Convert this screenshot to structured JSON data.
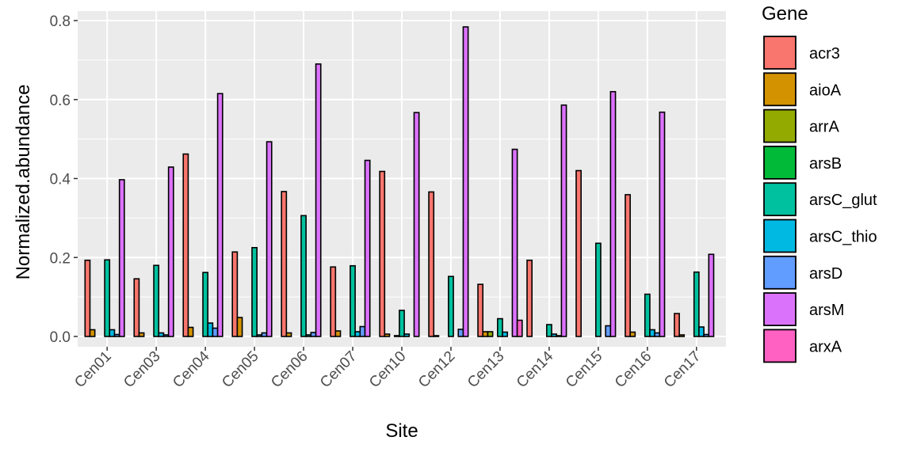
{
  "chart_data": {
    "type": "bar",
    "title": "",
    "xlabel": "Site",
    "ylabel": "Normalized.abundance",
    "ylim": [
      0,
      0.8
    ],
    "yticks": [
      "0.0",
      "0.2",
      "0.4",
      "0.6",
      "0.8"
    ],
    "grid": true,
    "legend": {
      "title": "Gene",
      "placement": "right"
    },
    "categories": [
      "Cen01",
      "Cen03",
      "Cen04",
      "Cen05",
      "Cen06",
      "Cen07",
      "Cen10",
      "Cen12",
      "Cen13",
      "Cen14",
      "Cen15",
      "Cen16",
      "Cen17"
    ],
    "series": [
      {
        "name": "acr3",
        "color": "#F8766D",
        "values": [
          0.193,
          0.146,
          0.462,
          0.214,
          0.367,
          0.176,
          0.418,
          0.366,
          0.132,
          0.193,
          0.42,
          0.359,
          0.058
        ]
      },
      {
        "name": "aioA",
        "color": "#D39200",
        "values": [
          0.017,
          0.009,
          0.023,
          0.048,
          0.009,
          0.014,
          0.006,
          0.002,
          0.012,
          0.0,
          0.0,
          0.011,
          0.004
        ]
      },
      {
        "name": "arrA",
        "color": "#93AA00",
        "values": [
          0.0,
          0.0,
          0.0,
          0.0,
          0.0,
          0.0,
          0.0,
          0.0,
          0.012,
          0.0,
          0.0,
          0.0,
          0.0
        ]
      },
      {
        "name": "arsB",
        "color": "#00BA38",
        "values": [
          0.0,
          0.0,
          0.0,
          0.0,
          0.0,
          0.0,
          0.002,
          0.0,
          0.0,
          0.0,
          0.0,
          0.0,
          0.0
        ]
      },
      {
        "name": "arsC_glut",
        "color": "#00C19F",
        "values": [
          0.194,
          0.18,
          0.162,
          0.225,
          0.306,
          0.179,
          0.066,
          0.152,
          0.045,
          0.03,
          0.236,
          0.107,
          0.163
        ]
      },
      {
        "name": "arsC_thio",
        "color": "#00B9E3",
        "values": [
          0.017,
          0.009,
          0.034,
          0.004,
          0.004,
          0.012,
          0.006,
          0.0,
          0.011,
          0.006,
          0.0,
          0.017,
          0.024
        ]
      },
      {
        "name": "arsD",
        "color": "#619CFF",
        "values": [
          0.005,
          0.004,
          0.021,
          0.009,
          0.01,
          0.025,
          0.0,
          0.018,
          0.0,
          0.002,
          0.027,
          0.009,
          0.005
        ]
      },
      {
        "name": "arsM",
        "color": "#DB72FB",
        "values": [
          0.397,
          0.429,
          0.615,
          0.493,
          0.69,
          0.446,
          0.567,
          0.784,
          0.474,
          0.586,
          0.62,
          0.568,
          0.208
        ]
      },
      {
        "name": "arxA",
        "color": "#FF61C3",
        "values": [
          0.0,
          0.0,
          0.0,
          0.0,
          0.0,
          0.0,
          0.0,
          0.0,
          0.041,
          0.0,
          0.0,
          0.0,
          0.0
        ]
      }
    ]
  }
}
